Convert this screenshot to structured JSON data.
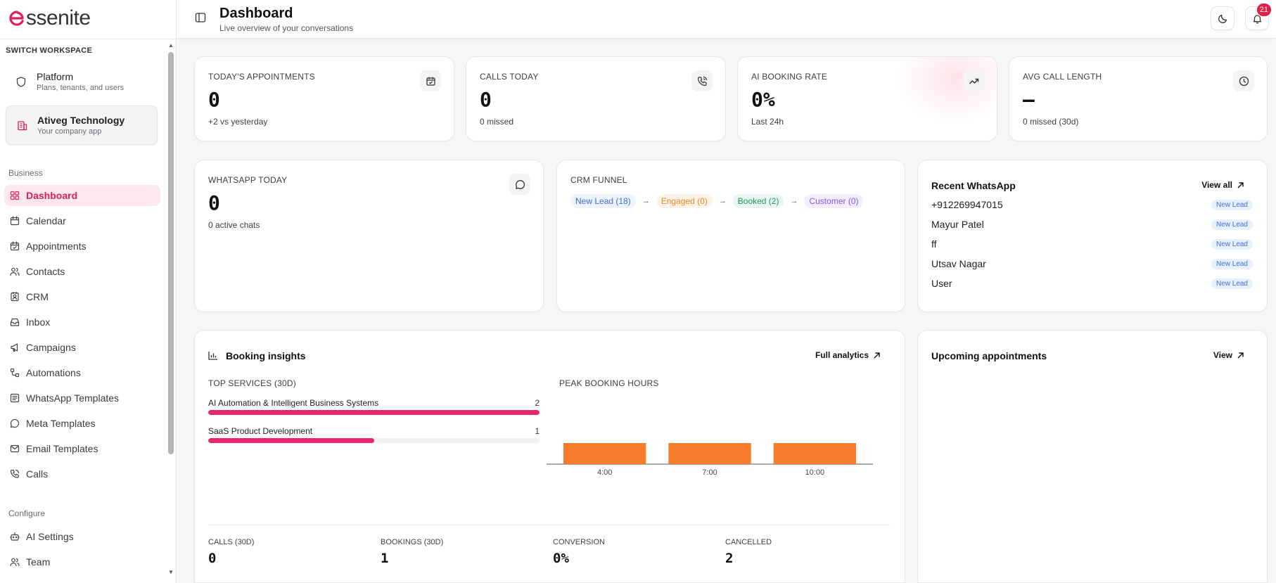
{
  "brand": {
    "logo_text": "ssenite",
    "accent": "#e11d58"
  },
  "sidebar": {
    "switch_label": "SWITCH WORKSPACE",
    "workspaces": [
      {
        "title": "Platform",
        "subtitle": "Plans, tenants, and users",
        "icon": "shield-icon"
      },
      {
        "title": "Ativeg Technology",
        "subtitle": "Your company app",
        "icon": "building-icon"
      }
    ],
    "business_label": "Business",
    "business_items": [
      {
        "label": "Dashboard",
        "icon": "grid-icon",
        "active": true
      },
      {
        "label": "Calendar",
        "icon": "calendar-icon"
      },
      {
        "label": "Appointments",
        "icon": "calendar-check-icon"
      },
      {
        "label": "Contacts",
        "icon": "users-icon"
      },
      {
        "label": "CRM",
        "icon": "contact-card-icon"
      },
      {
        "label": "Inbox",
        "icon": "inbox-icon"
      },
      {
        "label": "Campaigns",
        "icon": "megaphone-icon"
      },
      {
        "label": "Automations",
        "icon": "workflow-icon"
      },
      {
        "label": "WhatsApp Templates",
        "icon": "template-icon"
      },
      {
        "label": "Meta Templates",
        "icon": "chat-bubble-icon"
      },
      {
        "label": "Email Templates",
        "icon": "mail-icon"
      },
      {
        "label": "Calls",
        "icon": "phone-icon"
      }
    ],
    "configure_label": "Configure",
    "configure_items": [
      {
        "label": "AI Settings",
        "icon": "bot-icon"
      },
      {
        "label": "Team",
        "icon": "team-icon"
      }
    ]
  },
  "header": {
    "title": "Dashboard",
    "subtitle": "Live overview of your conversations",
    "notification_count": "21"
  },
  "stats": [
    {
      "label": "TODAY'S APPOINTMENTS",
      "value": "0",
      "sub": "+2 vs yesterday",
      "icon": "calendar-check-icon"
    },
    {
      "label": "CALLS TODAY",
      "value": "0",
      "sub": "0 missed",
      "icon": "phone-call-icon"
    },
    {
      "label": "AI BOOKING RATE",
      "value": "0%",
      "sub": "Last 24h",
      "icon": "trending-up-icon"
    },
    {
      "label": "AVG CALL LENGTH",
      "value": "–",
      "sub": "0 missed (30d)",
      "icon": "clock-icon"
    }
  ],
  "whatsapp_today": {
    "label": "WHATSAPP TODAY",
    "value": "0",
    "sub": "0 active chats"
  },
  "crm_funnel": {
    "label": "CRM FUNNEL",
    "stages": [
      {
        "label": "New Lead (18)",
        "color": "#3b6fd8",
        "bg": "#eef3fd"
      },
      {
        "label": "Engaged (0)",
        "color": "#e88a1a",
        "bg": "#fdf4e9"
      },
      {
        "label": "Booked (2)",
        "color": "#1a9a5a",
        "bg": "#eaf7f0"
      },
      {
        "label": "Customer (0)",
        "color": "#7c5ce0",
        "bg": "#f2eefd"
      }
    ],
    "arrow": "→"
  },
  "recent_whatsapp": {
    "title": "Recent WhatsApp",
    "link": "View all",
    "rows": [
      {
        "name": "+912269947015",
        "tag": "New Lead"
      },
      {
        "name": "Mayur Patel",
        "tag": "New Lead"
      },
      {
        "name": "ff",
        "tag": "New Lead"
      },
      {
        "name": "Utsav Nagar",
        "tag": "New Lead"
      },
      {
        "name": "User",
        "tag": "New Lead"
      }
    ]
  },
  "booking_insights": {
    "title": "Booking insights",
    "link": "Full analytics",
    "top_services_label": "TOP SERVICES (30D)",
    "services": [
      {
        "name": "AI Automation & Intelligent Business Systems",
        "count": 2,
        "fraction": 1.0
      },
      {
        "name": "SaaS Product Development",
        "count": 1,
        "fraction": 0.5
      }
    ],
    "peak_label": "PEAK BOOKING HOURS",
    "metrics": [
      {
        "label": "CALLS (30D)",
        "value": "0"
      },
      {
        "label": "BOOKINGS (30D)",
        "value": "1"
      },
      {
        "label": "CONVERSION",
        "value": "0%"
      },
      {
        "label": "CANCELLED",
        "value": "2"
      }
    ]
  },
  "chart_data": {
    "type": "bar",
    "title": "PEAK BOOKING HOURS",
    "categories": [
      "4:00",
      "7:00",
      "10:00"
    ],
    "values": [
      1,
      1,
      1
    ],
    "color": "#f47c2a",
    "grid": false
  },
  "upcoming": {
    "title": "Upcoming appointments",
    "link": "View"
  }
}
